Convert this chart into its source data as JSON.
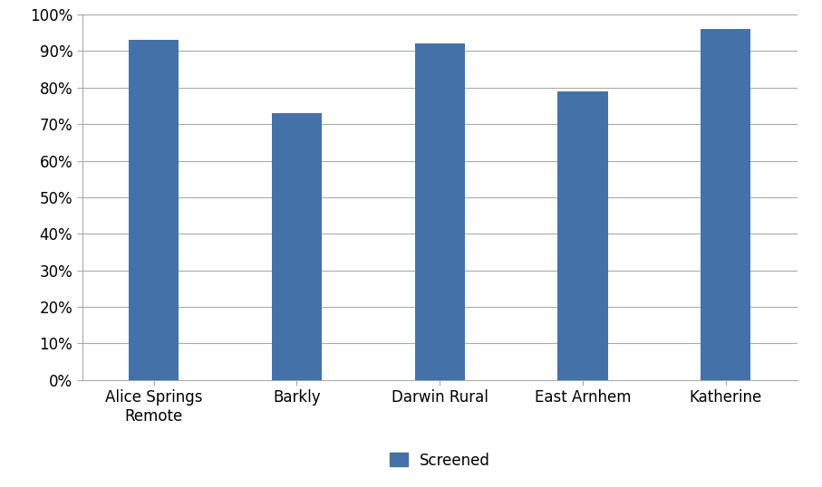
{
  "categories": [
    "Alice Springs\nRemote",
    "Barkly",
    "Darwin Rural",
    "East Arnhem",
    "Katherine"
  ],
  "values": [
    0.93,
    0.73,
    0.92,
    0.79,
    0.96
  ],
  "bar_color": "#4472a8",
  "bar_width": 0.35,
  "ylim": [
    0,
    1.0
  ],
  "yticks": [
    0.0,
    0.1,
    0.2,
    0.3,
    0.4,
    0.5,
    0.6,
    0.7,
    0.8,
    0.9,
    1.0
  ],
  "ytick_labels": [
    "0%",
    "10%",
    "20%",
    "30%",
    "40%",
    "50%",
    "60%",
    "70%",
    "80%",
    "90%",
    "100%"
  ],
  "legend_label": "Screened",
  "background_color": "#ffffff",
  "grid_color": "#aaaaaa",
  "tick_fontsize": 12,
  "label_fontsize": 12,
  "spine_color": "#aaaaaa"
}
